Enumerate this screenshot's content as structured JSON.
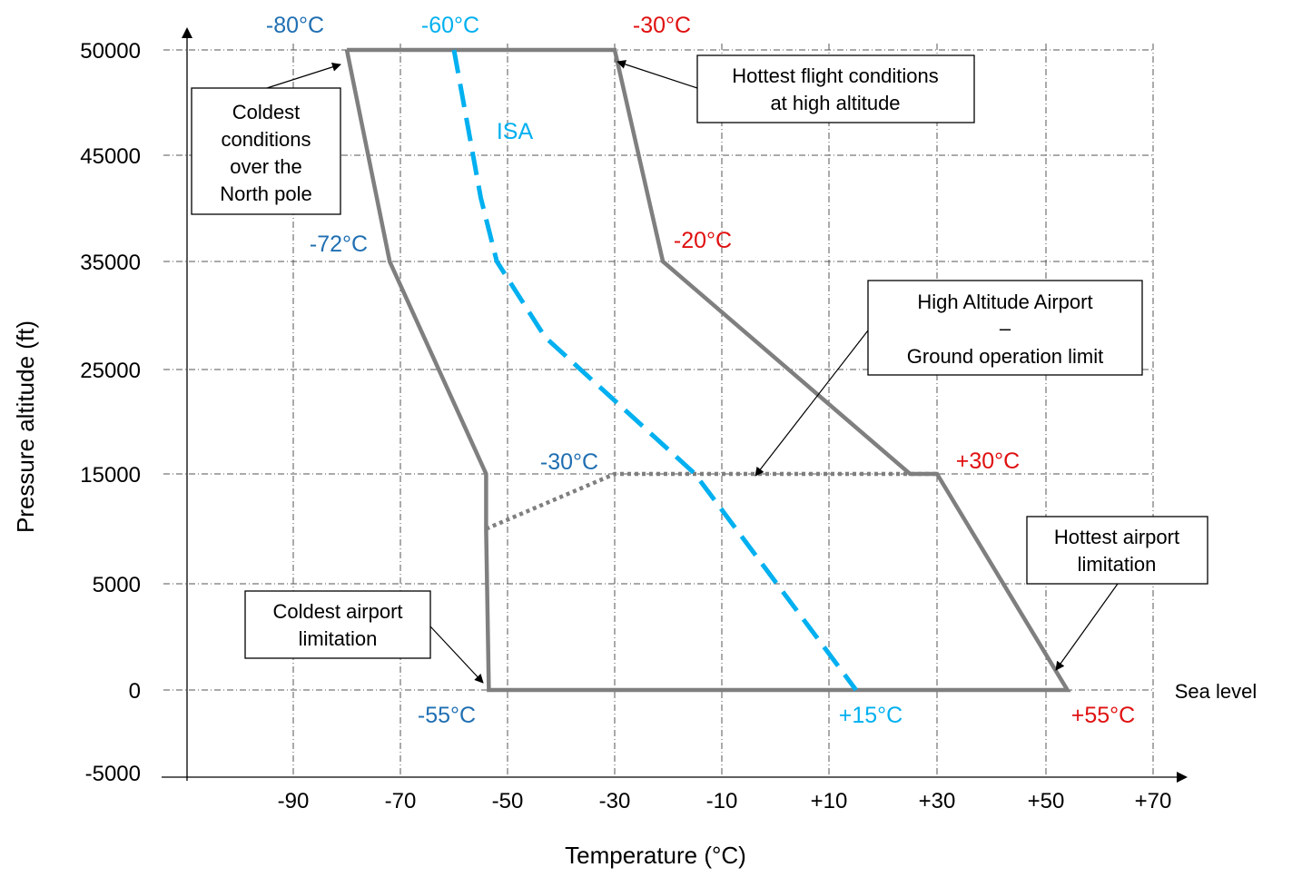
{
  "chart_data": {
    "type": "line",
    "xlabel": "Temperature (°C)",
    "ylabel": "Pressure altitude (ft)",
    "x_ticks": [
      "-90",
      "-70",
      "-50",
      "-30",
      "-10",
      "+10",
      "+30",
      "+50",
      "+70"
    ],
    "x_tick_values": [
      -90,
      -70,
      -50,
      -30,
      -10,
      10,
      30,
      50,
      70
    ],
    "y_ticks": [
      "50000",
      "45000",
      "35000",
      "25000",
      "15000",
      "5000",
      "0",
      "-5000"
    ],
    "y_tick_values": [
      50000,
      45000,
      35000,
      25000,
      15000,
      5000,
      0,
      -5000
    ],
    "grid": true,
    "series": [
      {
        "style": "solid",
        "color": "#7f7f7f",
        "points": [
          [
            -80,
            50000
          ],
          [
            -72,
            35000
          ],
          [
            -54,
            15000
          ],
          [
            -54,
            10000
          ],
          [
            -53.5,
            0
          ],
          [
            54,
            0
          ],
          [
            30,
            15000
          ],
          [
            25,
            15000
          ],
          [
            -21,
            35000
          ],
          [
            -30,
            50000
          ],
          [
            -80,
            50000
          ]
        ]
      },
      {
        "style": "dotted",
        "color": "#7f7f7f",
        "points": [
          [
            -54,
            10000
          ],
          [
            -30,
            15000
          ],
          [
            30,
            15000
          ]
        ]
      },
      {
        "name": "ISA",
        "style": "dashed",
        "color": "#00b0f0",
        "points": [
          [
            -60,
            50000
          ],
          [
            -55,
            41000
          ],
          [
            -52,
            35000
          ],
          [
            -43,
            28000
          ],
          [
            -15,
            15000
          ],
          [
            15,
            0
          ]
        ]
      }
    ],
    "temperature_labels": [
      {
        "text": "-80°C",
        "color": "#1f6fb2"
      },
      {
        "text": "-60°C",
        "color": "#00b0f0"
      },
      {
        "text": "-30°C",
        "color": "#e01010"
      },
      {
        "text": "-72°C",
        "color": "#1f6fb2"
      },
      {
        "text": "-20°C",
        "color": "#e01010"
      },
      {
        "text": "-30°C",
        "color": "#1f6fb2"
      },
      {
        "text": "+30°C",
        "color": "#e01010"
      },
      {
        "text": "-55°C",
        "color": "#1f6fb2"
      },
      {
        "text": "+15°C",
        "color": "#00b0f0"
      },
      {
        "text": "+55°C",
        "color": "#e01010"
      },
      {
        "text": "ISA",
        "color": "#00b0f0"
      }
    ],
    "annotations": [
      {
        "lines": [
          "Coldest",
          "conditions",
          "over the",
          "North pole"
        ]
      },
      {
        "lines": [
          "Hottest flight conditions",
          "at high altitude"
        ]
      },
      {
        "lines": [
          "High Altitude Airport",
          "–",
          "Ground operation limit"
        ]
      },
      {
        "lines": [
          "Hottest airport",
          "limitation"
        ]
      },
      {
        "lines": [
          "Coldest airport",
          "limitation"
        ]
      }
    ],
    "sea_level_label": "Sea level"
  }
}
